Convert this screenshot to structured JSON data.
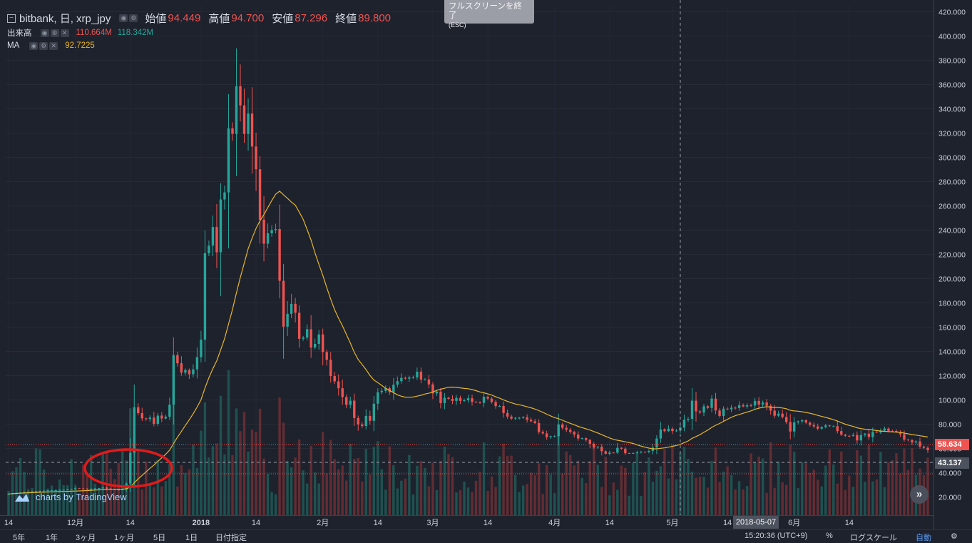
{
  "legend": {
    "symbol": "bitbank, 日, xrp_jpy",
    "open_label": "始値",
    "open": "94.449",
    "high_label": "高値",
    "high": "94.700",
    "low_label": "安値",
    "low": "87.296",
    "close_label": "終値",
    "close": "89.800",
    "volume_label": "出来高",
    "volume_value": "110.664M",
    "volume_ma": "118.342M",
    "ma_label": "MA",
    "ma_value": "92.7225"
  },
  "fullscreen_exit": {
    "label": "フルスクリーンを終了",
    "hint": "(ESC)"
  },
  "watermark": "charts by TradingView",
  "crosshair_date": "2018-05-07",
  "last_price_tag": "58.634",
  "crosshair_price_tag": "43.137",
  "bottom_bar": {
    "ranges": [
      "5年",
      "1年",
      "3ヶ月",
      "1ヶ月",
      "5日",
      "1日",
      "日付指定"
    ],
    "time": "15:20:36 (UTC+9)",
    "percent": "%",
    "log_scale": "ログスケール",
    "auto": "自動"
  },
  "colors": {
    "up": "#26a69a",
    "down": "#ef5350",
    "ma": "#e7b62c",
    "background": "#1e222d",
    "highlight_ellipse": "#e01b1b"
  },
  "chart_data": {
    "type": "candlestick",
    "series_ma_name": "MA",
    "y_ticks": [
      20,
      40,
      60,
      80,
      100,
      120,
      140,
      160,
      180,
      200,
      220,
      240,
      260,
      280,
      300,
      320,
      340,
      360,
      380,
      400,
      420
    ],
    "y_tick_labels": [
      "20.000",
      "40.000",
      "60.000",
      "80.000",
      "100.000",
      "120.000",
      "140.000",
      "160.000",
      "180.000",
      "200.000",
      "220.000",
      "240.000",
      "260.000",
      "280.000",
      "300.000",
      "320.000",
      "340.000",
      "360.000",
      "380.000",
      "400.000",
      "420.000"
    ],
    "ylim": [
      5,
      425
    ],
    "x_tick_labels": [
      "14",
      "12月",
      "14",
      "2018",
      "14",
      "2月",
      "14",
      "3月",
      "14",
      "4月",
      "14",
      "5月",
      "14",
      "6月",
      "14"
    ],
    "x_tick_days": [
      0,
      17,
      31,
      49,
      63,
      80,
      94,
      108,
      122,
      139,
      153,
      169,
      183,
      200,
      214
    ],
    "close": [
      22.5,
      23,
      23.4,
      23.6,
      24,
      24.2,
      24.5,
      24.8,
      25,
      25.2,
      25.4,
      25.5,
      25.6,
      25.8,
      26,
      26.2,
      26.4,
      27.2,
      27,
      26.8,
      26.6,
      26.8,
      27,
      27.3,
      27.8,
      26.9,
      26.4,
      26.1,
      25.9,
      26.3,
      31.1,
      56.3,
      94,
      89.1,
      84.8,
      84.2,
      85.5,
      80.3,
      87.1,
      84.7,
      86.2,
      96.1,
      137,
      130.2,
      122.5,
      124.7,
      121.2,
      125.2,
      135.3,
      149.7,
      220.9,
      227.2,
      242.6,
      221.7,
      265.3,
      271.1,
      323.9,
      319.3,
      358.6,
      342.8,
      319.3,
      336.1,
      308.9,
      290.2,
      248.6,
      228.8,
      237.4,
      240.1,
      240.9,
      198.2,
      160.4,
      171,
      179.2,
      171.9,
      150.4,
      151.4,
      158.3,
      143.2,
      146.2,
      154,
      139.5,
      133.1,
      119.7,
      115.3,
      109.6,
      102.4,
      96,
      99.4,
      85.1,
      79.8,
      78.5,
      86.8,
      82.8,
      96.9,
      106.4,
      107.5,
      109.6,
      106.5,
      112.6,
      115.5,
      118.2,
      117.5,
      118.5,
      118.6,
      123.3,
      116.8,
      116.9,
      112.8,
      105.4,
      106.9,
      97.4,
      101.8,
      100.9,
      99.2,
      101.7,
      99.2,
      99.7,
      101.4,
      98.4,
      98.2,
      97.6,
      102.6,
      101.1,
      98.3,
      94.9,
      95,
      89.2,
      86.3,
      84.6,
      85.2,
      85.3,
      85.7,
      83.6,
      82.4,
      80.9,
      73.6,
      72.4,
      69.3,
      70.1,
      70.1,
      79.8,
      77,
      75.4,
      73.6,
      71.5,
      68.2,
      68.5,
      67,
      63.8,
      60.8,
      61.4,
      57.7,
      55.6,
      56.6,
      56.5,
      60.5,
      59.8,
      56.1,
      56.2,
      56.2,
      56.8,
      57.2,
      57.1,
      58,
      60.7,
      68.2,
      75.7,
      74.3,
      76.3,
      74.3,
      74.8,
      77.2,
      83.6,
      84.4,
      99.4,
      90.6,
      89.6,
      94.8,
      93.4,
      101.1,
      91.3,
      86.8,
      92.8,
      92.3,
      93.6,
      93.3,
      95.7,
      94.6,
      95.6,
      95.4,
      99.2,
      96.2,
      97.9,
      95.2,
      91.2,
      87,
      88.7,
      85.9,
      81.8,
      74,
      81.5,
      82.4,
      83.3,
      81.3,
      79.4,
      78.2,
      76.3,
      77.6,
      79,
      78.4,
      78.4,
      74.3,
      71.4,
      70.4,
      70.3,
      71.1,
      66.6,
      71.1,
      72.2,
      69.4,
      73.7,
      73.2,
      74.8,
      76.4,
      74.5,
      74.4,
      73.5,
      71.7,
      67.3,
      66.9,
      64.9,
      65.8,
      61.6,
      60.5,
      58.6
    ],
    "volume_note": "volume bars shown in the lower part of the price pane"
  }
}
